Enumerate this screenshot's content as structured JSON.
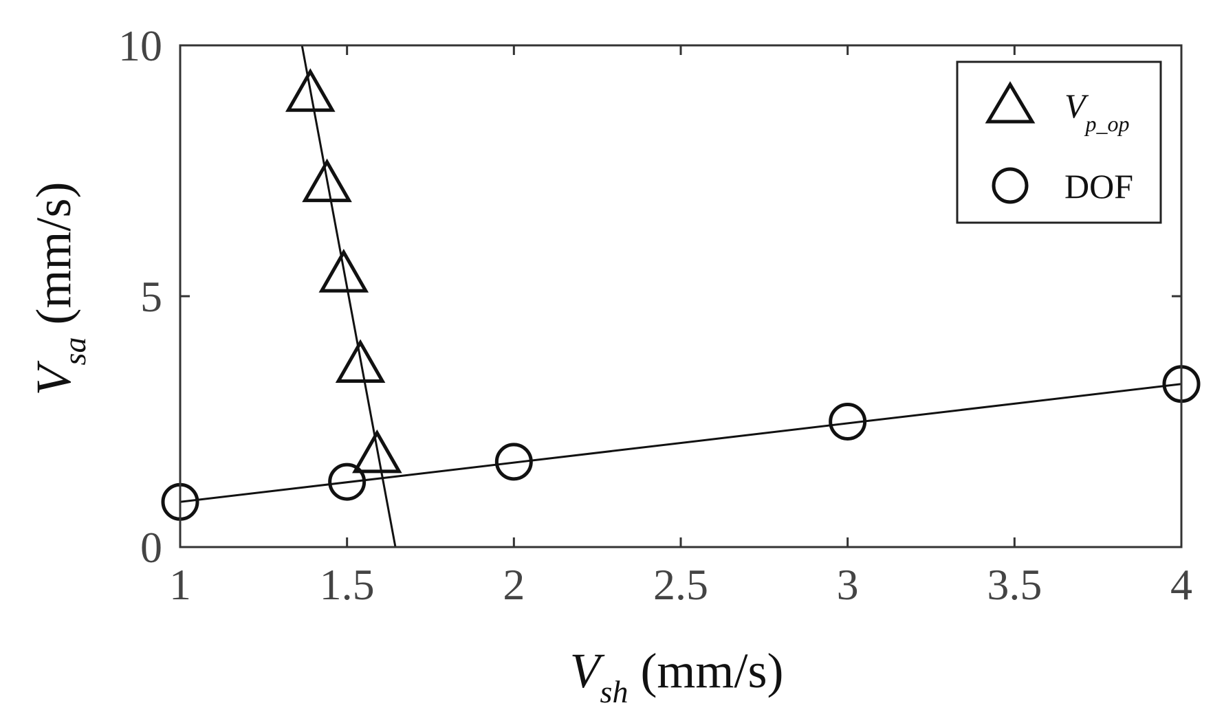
{
  "chart_data": {
    "type": "scatter",
    "x_axis": {
      "symbol": "V",
      "subscript": "sh",
      "unit": " (mm/s)",
      "lim": [
        1,
        4
      ],
      "ticks": [
        1,
        1.5,
        2,
        2.5,
        3,
        3.5,
        4
      ],
      "tick_labels": [
        "1",
        "1.5",
        "2",
        "2.5",
        "3",
        "3.5",
        "4"
      ]
    },
    "y_axis": {
      "symbol": "V",
      "subscript": "sa",
      "unit": " (mm/s)",
      "lim": [
        0,
        10
      ],
      "ticks": [
        0,
        5,
        10
      ],
      "tick_labels": [
        "0",
        "5",
        "10"
      ]
    },
    "legend_position": "top-right",
    "grid": false,
    "series": [
      {
        "marker": "triangle",
        "legend_symbol": "V",
        "legend_subscript": "p_op",
        "points": [
          [
            1.39,
            9.0
          ],
          [
            1.44,
            7.2
          ],
          [
            1.49,
            5.4
          ],
          [
            1.54,
            3.6
          ],
          [
            1.59,
            1.8
          ]
        ],
        "fit_line": [
          [
            1.365,
            10.0
          ],
          [
            1.645,
            0.0
          ]
        ]
      },
      {
        "marker": "circle",
        "legend_label": "DOF",
        "points": [
          [
            1.0,
            0.9
          ],
          [
            1.5,
            1.3
          ],
          [
            2.0,
            1.7
          ],
          [
            3.0,
            2.5
          ],
          [
            4.0,
            3.25
          ]
        ],
        "fit_line": [
          [
            1.0,
            0.9
          ],
          [
            4.0,
            3.25
          ]
        ]
      }
    ]
  }
}
